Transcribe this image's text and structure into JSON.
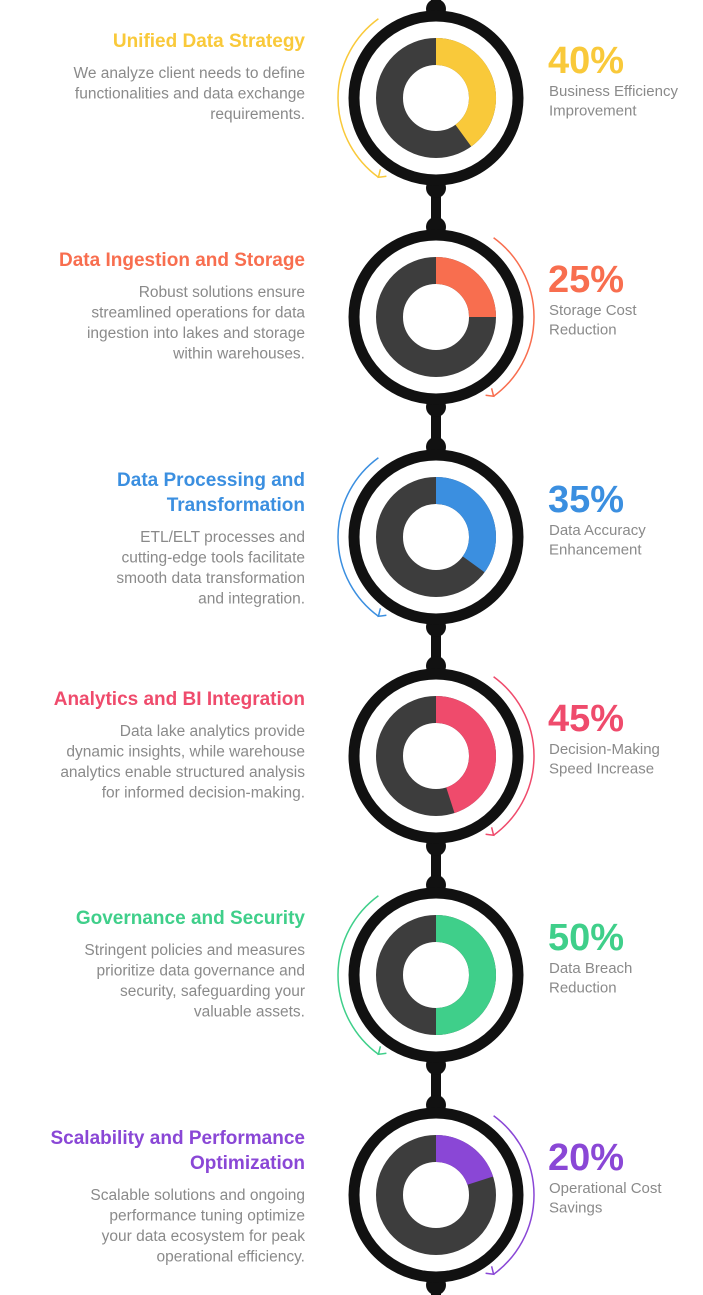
{
  "steps": [
    {
      "title": [
        "Unified Data Strategy"
      ],
      "description": [
        "We analyze client needs to define",
        "functionalities and data exchange",
        "requirements."
      ],
      "value": 40,
      "value_label": "40%",
      "caption": [
        "Business Efficiency",
        "Improvement"
      ],
      "color": "#f9c93a"
    },
    {
      "title": [
        "Data Ingestion and Storage"
      ],
      "description": [
        "Robust solutions ensure",
        "streamlined operations for data",
        "ingestion into lakes and storage",
        "within warehouses."
      ],
      "value": 25,
      "value_label": "25%",
      "caption": [
        "Storage Cost",
        "Reduction"
      ],
      "color": "#f86e4f"
    },
    {
      "title": [
        "Data Processing and",
        "Transformation"
      ],
      "description": [
        "ETL/ELT processes and",
        "cutting-edge tools facilitate",
        "smooth data transformation",
        "and integration."
      ],
      "value": 35,
      "value_label": "35%",
      "caption": [
        "Data Accuracy",
        "Enhancement"
      ],
      "color": "#3b8fe0"
    },
    {
      "title": [
        "Analytics and BI Integration"
      ],
      "description": [
        "Data lake analytics provide",
        "dynamic insights, while warehouse",
        "analytics enable structured analysis",
        "for informed decision-making."
      ],
      "value": 45,
      "value_label": "45%",
      "caption": [
        "Decision-Making",
        "Speed Increase"
      ],
      "color": "#ef4b6c"
    },
    {
      "title": [
        "Governance and Security"
      ],
      "description": [
        "Stringent policies and measures",
        "prioritize data governance and",
        "security, safeguarding your",
        "valuable assets."
      ],
      "value": 50,
      "value_label": "50%",
      "caption": [
        "Data Breach",
        "Reduction"
      ],
      "color": "#3fcf8a"
    },
    {
      "title": [
        "Scalability and Performance",
        "Optimization"
      ],
      "description": [
        "Scalable solutions and ongoing",
        "performance tuning optimize",
        "your data ecosystem for peak",
        "operational efficiency."
      ],
      "value": 20,
      "value_label": "20%",
      "caption": [
        "Operational Cost",
        "Savings"
      ],
      "color": "#8a47d6"
    }
  ]
}
